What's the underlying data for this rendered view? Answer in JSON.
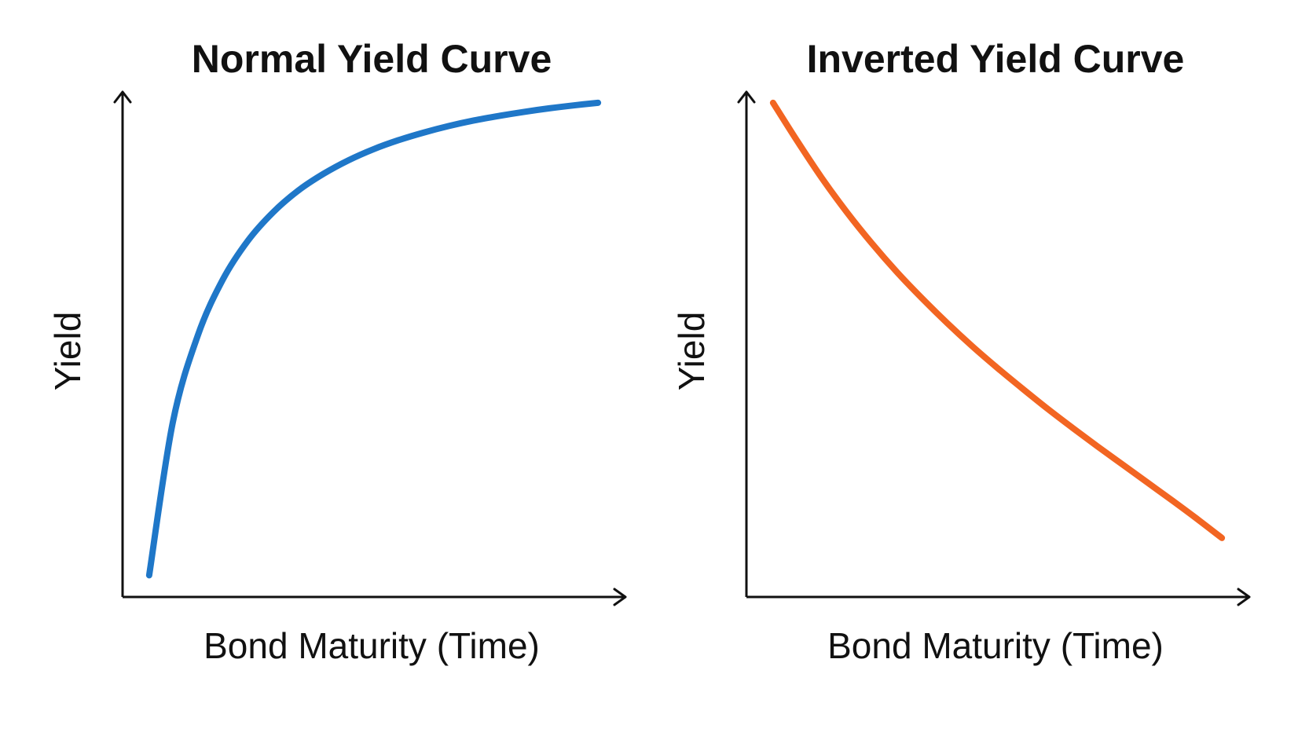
{
  "chart_data": [
    {
      "type": "line",
      "title": "Normal Yield Curve",
      "xlabel": "Bond Maturity (Time)",
      "ylabel": "Yield",
      "xlim": [
        0,
        100
      ],
      "ylim": [
        0,
        100
      ],
      "grid": false,
      "series": [
        {
          "color": "#1f77c8",
          "x": [
            5.3,
            10,
            15,
            20,
            25,
            30,
            35,
            40,
            45,
            50,
            55,
            60,
            65,
            70,
            75,
            80,
            85,
            90,
            94.7
          ],
          "y": [
            4.3,
            34.6,
            51.9,
            63.0,
            70.7,
            76.3,
            80.6,
            83.9,
            86.6,
            88.8,
            90.6,
            92.1,
            93.4,
            94.5,
            95.4,
            96.2,
            96.9,
            97.5,
            98.0
          ]
        }
      ]
    },
    {
      "type": "line",
      "title": "Inverted Yield Curve",
      "xlabel": "Bond Maturity (Time)",
      "ylabel": "Yield",
      "xlim": [
        0,
        100
      ],
      "ylim": [
        0,
        100
      ],
      "grid": false,
      "series": [
        {
          "color": "#f26522",
          "x": [
            5.3,
            10,
            15,
            20,
            25,
            30,
            35,
            40,
            45,
            50,
            55,
            60,
            65,
            70,
            75,
            80,
            85,
            90,
            94.7
          ],
          "y": [
            98.0,
            90.6,
            83.1,
            76.3,
            70.1,
            64.4,
            59.2,
            54.3,
            49.7,
            45.4,
            41.3,
            37.3,
            33.5,
            29.8,
            26.2,
            22.6,
            19.0,
            15.3,
            11.7
          ]
        }
      ]
    }
  ]
}
